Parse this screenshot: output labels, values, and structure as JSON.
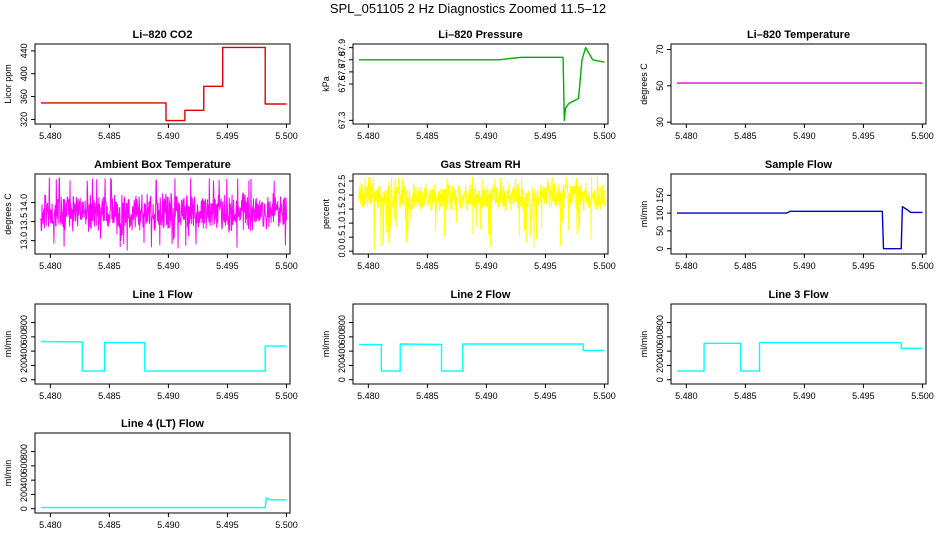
{
  "title": "SPL_051105  2 Hz Diagnostics Zoomed 11.5–12",
  "colors": {
    "co2": "#e00000",
    "pressure": "#00b000",
    "temperature": "#e000e0",
    "box_temperature": "#ff00ff",
    "rh": "#ffff00",
    "sample_flow": "#0000cc",
    "line_flow": "#00ffff"
  },
  "chart_data": [
    {
      "type": "line",
      "title": "Li–820 CO2",
      "ylabel": "Licor ppm",
      "color_key": "co2",
      "xlim": [
        5.4787,
        5.5003
      ],
      "ylim": [
        312,
        452
      ],
      "xticks": [
        "5.480",
        "5.485",
        "5.490",
        "5.495",
        "5.500"
      ],
      "yticks": [
        {
          "v": 320,
          "t": "320"
        },
        {
          "v": 360,
          "t": "360"
        },
        {
          "v": 400,
          "t": "400"
        },
        {
          "v": 440,
          "t": "440"
        }
      ],
      "series": [
        {
          "x": [
            5.4792,
            5.4898,
            5.4898,
            5.4914,
            5.4914,
            5.493,
            5.493,
            5.4946,
            5.4946,
            5.4982,
            5.4982,
            5.5
          ],
          "y": [
            349,
            349,
            318,
            318,
            336,
            336,
            378,
            378,
            446,
            446,
            347,
            347
          ]
        }
      ]
    },
    {
      "type": "line",
      "title": "Li–820 Pressure",
      "ylabel": "kPa",
      "color_key": "pressure",
      "xlim": [
        5.4787,
        5.5003
      ],
      "ylim": [
        67.27,
        67.93
      ],
      "xticks": [
        "5.480",
        "5.485",
        "5.490",
        "5.495",
        "5.500"
      ],
      "yticks": [
        {
          "v": 67.3,
          "t": "67.3"
        },
        {
          "v": 67.6,
          "t": "67.6"
        },
        {
          "v": 67.7,
          "t": "67.7"
        },
        {
          "v": 67.8,
          "t": "67.8"
        },
        {
          "v": 67.9,
          "t": "67.9"
        }
      ],
      "series": [
        {
          "x": [
            5.4792,
            5.488,
            5.491,
            5.493,
            5.4965,
            5.4966,
            5.4967,
            5.497,
            5.4978,
            5.4981,
            5.4984,
            5.499,
            5.5
          ],
          "y": [
            67.8,
            67.8,
            67.8,
            67.82,
            67.82,
            67.3,
            67.4,
            67.44,
            67.48,
            67.8,
            67.9,
            67.8,
            67.78
          ]
        }
      ]
    },
    {
      "type": "line",
      "title": "Li–820 Temperature",
      "ylabel": "degrees C",
      "color_key": "temperature",
      "xlim": [
        5.4787,
        5.5003
      ],
      "ylim": [
        29,
        73
      ],
      "xticks": [
        "5.480",
        "5.485",
        "5.490",
        "5.495",
        "5.500"
      ],
      "yticks": [
        {
          "v": 30,
          "t": "30"
        },
        {
          "v": 50,
          "t": "50"
        },
        {
          "v": 70,
          "t": "70"
        }
      ],
      "series": [
        {
          "x": [
            5.4792,
            5.5
          ],
          "y": [
            51.5,
            51.5
          ]
        }
      ]
    },
    {
      "type": "line",
      "title": "Ambient Box Temperature",
      "ylabel": "degrees C",
      "color_key": "box_temperature",
      "xlim": [
        5.4787,
        5.5003
      ],
      "ylim": [
        12.65,
        14.75
      ],
      "xticks": [
        "5.480",
        "5.485",
        "5.490",
        "5.495",
        "5.500"
      ],
      "yticks": [
        {
          "v": 13.0,
          "t": "13.0"
        },
        {
          "v": 13.5,
          "t": "13.5"
        },
        {
          "v": 14.0,
          "t": "14.0"
        }
      ],
      "series": [
        {
          "x": [
            5.4792,
            5.5
          ],
          "y": [
            13.75,
            13.75
          ],
          "noise": {
            "spread": 0.55,
            "min": 12.75,
            "max": 14.65
          }
        }
      ]
    },
    {
      "type": "line",
      "title": "Gas Stream RH",
      "ylabel": "percent",
      "color_key": "rh",
      "xlim": [
        5.4787,
        5.5003
      ],
      "ylim": [
        -0.1,
        2.75
      ],
      "xticks": [
        "5.480",
        "5.485",
        "5.490",
        "5.495",
        "5.500"
      ],
      "yticks": [
        {
          "v": 0.0,
          "t": "0.0"
        },
        {
          "v": 0.5,
          "t": "0.5"
        },
        {
          "v": 1.0,
          "t": "1.0"
        },
        {
          "v": 1.5,
          "t": "1.5"
        },
        {
          "v": 2.0,
          "t": "2.0"
        },
        {
          "v": 2.5,
          "t": "2.5"
        }
      ],
      "series": [
        {
          "x": [
            5.4792,
            5.5
          ],
          "y": [
            1.95,
            1.95
          ],
          "noise": {
            "spread": 0.55,
            "min": 0.05,
            "max": 2.65
          }
        }
      ]
    },
    {
      "type": "line",
      "title": "Sample Flow",
      "ylabel": "ml/min",
      "color_key": "sample_flow",
      "xlim": [
        5.4787,
        5.5003
      ],
      "ylim": [
        -15,
        210
      ],
      "xticks": [
        "5.480",
        "5.485",
        "5.490",
        "5.495",
        "5.500"
      ],
      "yticks": [
        {
          "v": 0,
          "t": "0"
        },
        {
          "v": 50,
          "t": "50"
        },
        {
          "v": 100,
          "t": "100"
        },
        {
          "v": 150,
          "t": "150"
        }
      ],
      "series": [
        {
          "x": [
            5.4792,
            5.4885,
            5.4888,
            5.4966,
            5.4967,
            5.4982,
            5.4983,
            5.4987,
            5.499,
            5.5
          ],
          "y": [
            100,
            100,
            105,
            105,
            0,
            0,
            118,
            110,
            102,
            102
          ]
        }
      ]
    },
    {
      "type": "line",
      "title": "Line 1 Flow",
      "ylabel": "ml/min",
      "color_key": "line_flow",
      "xlim": [
        5.4787,
        5.5003
      ],
      "ylim": [
        -60,
        1060
      ],
      "xticks": [
        "5.480",
        "5.485",
        "5.490",
        "5.495",
        "5.500"
      ],
      "yticks": [
        {
          "v": 0,
          "t": "0"
        },
        {
          "v": 200,
          "t": "200"
        },
        {
          "v": 400,
          "t": "400"
        },
        {
          "v": 600,
          "t": "600"
        },
        {
          "v": 800,
          "t": "800"
        }
      ],
      "series": [
        {
          "x": [
            5.4792,
            5.4827,
            5.4827,
            5.4846,
            5.4846,
            5.488,
            5.488,
            5.4982,
            5.4982,
            5.5
          ],
          "y": [
            535,
            530,
            120,
            120,
            520,
            520,
            120,
            120,
            470,
            470
          ]
        }
      ]
    },
    {
      "type": "line",
      "title": "Line 2 Flow",
      "ylabel": "ml/min",
      "color_key": "line_flow",
      "xlim": [
        5.4787,
        5.5003
      ],
      "ylim": [
        -60,
        1060
      ],
      "xticks": [
        "5.480",
        "5.485",
        "5.490",
        "5.495",
        "5.500"
      ],
      "yticks": [
        {
          "v": 0,
          "t": "0"
        },
        {
          "v": 200,
          "t": "200"
        },
        {
          "v": 400,
          "t": "400"
        },
        {
          "v": 600,
          "t": "600"
        },
        {
          "v": 800,
          "t": "800"
        }
      ],
      "series": [
        {
          "x": [
            5.4792,
            5.4811,
            5.4811,
            5.4827,
            5.4827,
            5.4862,
            5.4862,
            5.488,
            5.488,
            5.4982,
            5.4982,
            5.5
          ],
          "y": [
            495,
            490,
            120,
            120,
            500,
            495,
            120,
            120,
            500,
            500,
            410,
            410
          ]
        }
      ]
    },
    {
      "type": "line",
      "title": "Line 3 Flow",
      "ylabel": "ml/min",
      "color_key": "line_flow",
      "xlim": [
        5.4787,
        5.5003
      ],
      "ylim": [
        -60,
        1060
      ],
      "xticks": [
        "5.480",
        "5.485",
        "5.490",
        "5.495",
        "5.500"
      ],
      "yticks": [
        {
          "v": 0,
          "t": "0"
        },
        {
          "v": 200,
          "t": "200"
        },
        {
          "v": 400,
          "t": "400"
        },
        {
          "v": 600,
          "t": "600"
        },
        {
          "v": 800,
          "t": "800"
        }
      ],
      "series": [
        {
          "x": [
            5.4792,
            5.4815,
            5.4815,
            5.4846,
            5.4846,
            5.4862,
            5.4862,
            5.4982,
            5.4982,
            5.5
          ],
          "y": [
            120,
            120,
            510,
            510,
            120,
            120,
            520,
            520,
            440,
            440
          ]
        }
      ]
    },
    {
      "type": "line",
      "title": "Line 4 (LT) Flow",
      "ylabel": "ml/min",
      "color_key": "line_flow",
      "xlim": [
        5.4787,
        5.5003
      ],
      "ylim": [
        -60,
        1060
      ],
      "xticks": [
        "5.480",
        "5.485",
        "5.490",
        "5.495",
        "5.500"
      ],
      "yticks": [
        {
          "v": 0,
          "t": "0"
        },
        {
          "v": 200,
          "t": "200"
        },
        {
          "v": 400,
          "t": "400"
        },
        {
          "v": 600,
          "t": "600"
        },
        {
          "v": 800,
          "t": "800"
        }
      ],
      "series": [
        {
          "x": [
            5.4792,
            5.4982,
            5.4983,
            5.4986,
            5.5
          ],
          "y": [
            15,
            15,
            150,
            125,
            125
          ]
        }
      ]
    }
  ]
}
